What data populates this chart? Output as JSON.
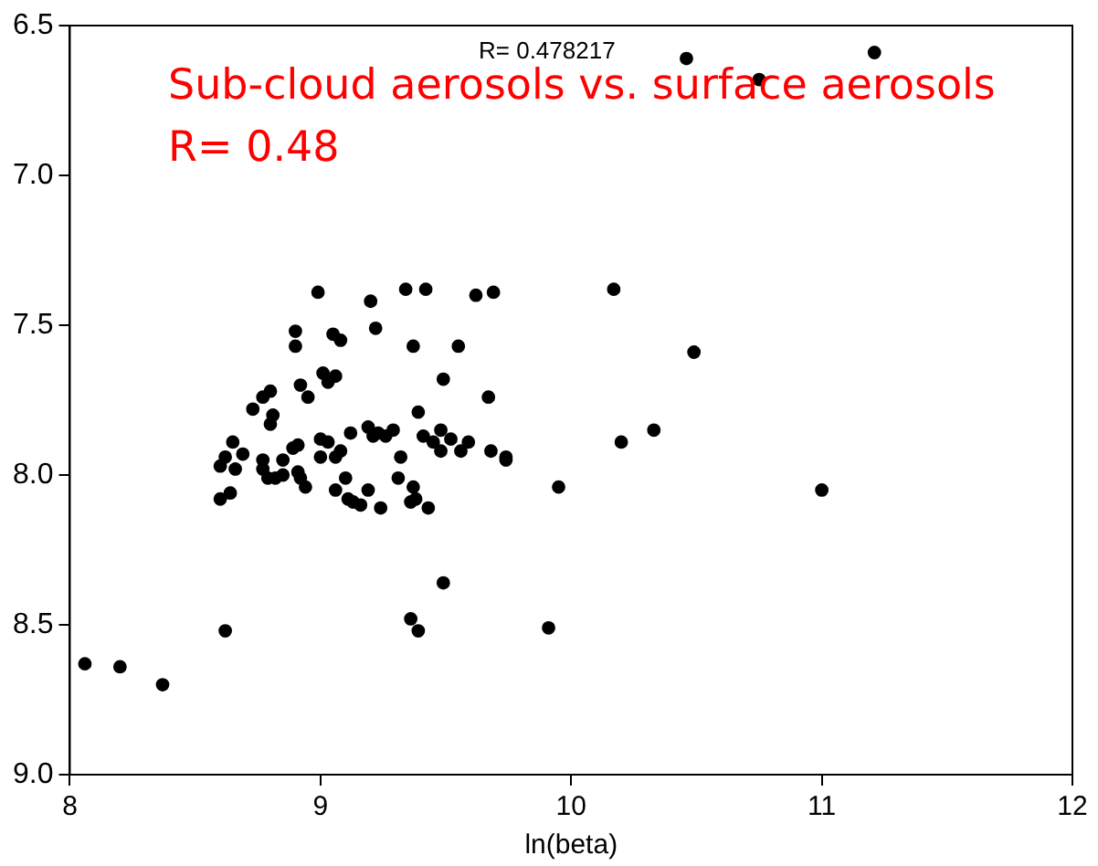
{
  "chart_data": {
    "type": "scatter",
    "xlabel": "ln(beta)",
    "annotations": [
      "R= 0.478217",
      "Sub-cloud aerosols vs. surface aerosols",
      "R= 0.48"
    ],
    "xlim": [
      8,
      12
    ],
    "xticks": [
      8,
      9,
      10,
      11,
      12
    ],
    "ylim": [
      9.0,
      6.5
    ],
    "yticks": [
      {
        "value": 6.5,
        "label": "6.5"
      },
      {
        "value": 7,
        "label": "7.0"
      },
      {
        "value": 7.5,
        "label": "7.5"
      },
      {
        "value": 8,
        "label": "8.0"
      },
      {
        "value": 8.5,
        "label": "8.5"
      },
      {
        "value": 9,
        "label": "9.0"
      }
    ],
    "grid": false,
    "legend": false,
    "marker": "circle",
    "series": [
      {
        "color": "#000000",
        "x": [
          10.46,
          10.75,
          11.21,
          10.17,
          10.49,
          10.33,
          9.95,
          10.2,
          11.0,
          9.91,
          8.06,
          8.2,
          8.37,
          8.62,
          9.36,
          9.39,
          9.49,
          8.99,
          9.2,
          9.34,
          9.42,
          9.62,
          9.69,
          8.9,
          8.9,
          9.05,
          9.08,
          9.22,
          9.37,
          9.55,
          9.01,
          9.03,
          9.06,
          8.92,
          8.95,
          9.49,
          9.67,
          8.8,
          8.77,
          8.73,
          8.81,
          8.8,
          9.39,
          8.6,
          8.62,
          8.65,
          8.69,
          8.66,
          8.6,
          8.64,
          8.77,
          8.77,
          8.79,
          8.82,
          8.85,
          8.85,
          8.89,
          8.91,
          8.91,
          8.92,
          8.94,
          9.0,
          9.0,
          9.03,
          9.06,
          9.08,
          9.06,
          9.1,
          9.12,
          9.11,
          9.13,
          9.16,
          9.19,
          9.21,
          9.19,
          9.24,
          9.23,
          9.26,
          9.29,
          9.32,
          9.31,
          9.37,
          9.36,
          9.38,
          9.43,
          9.41,
          9.45,
          9.48,
          9.48,
          9.52,
          9.56,
          9.59,
          9.68,
          9.74,
          9.74
        ],
        "values": [
          6.61,
          6.68,
          6.59,
          7.38,
          7.59,
          7.85,
          8.04,
          7.89,
          8.05,
          8.51,
          8.63,
          8.64,
          8.7,
          8.52,
          8.48,
          8.52,
          8.36,
          7.39,
          7.42,
          7.38,
          7.38,
          7.4,
          7.39,
          7.52,
          7.57,
          7.53,
          7.55,
          7.51,
          7.57,
          7.57,
          7.66,
          7.69,
          7.67,
          7.7,
          7.74,
          7.68,
          7.74,
          7.72,
          7.74,
          7.78,
          7.8,
          7.83,
          7.79,
          7.97,
          7.94,
          7.89,
          7.93,
          7.98,
          8.08,
          8.06,
          7.95,
          7.98,
          8.01,
          8.01,
          7.95,
          8.0,
          7.91,
          7.9,
          7.99,
          8.01,
          8.04,
          7.88,
          7.94,
          7.89,
          7.94,
          7.92,
          8.05,
          8.01,
          7.86,
          8.08,
          8.09,
          8.1,
          7.84,
          7.87,
          8.05,
          8.11,
          7.86,
          7.87,
          7.85,
          7.94,
          8.01,
          8.04,
          8.09,
          8.08,
          8.11,
          7.87,
          7.89,
          7.85,
          7.92,
          7.88,
          7.92,
          7.89,
          7.92,
          7.95,
          7.94
        ]
      }
    ]
  }
}
